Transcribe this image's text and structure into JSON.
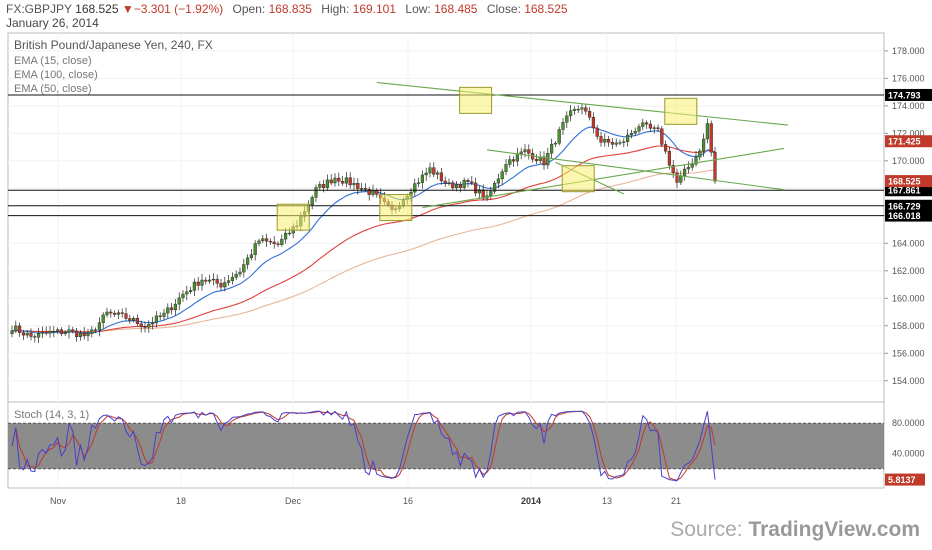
{
  "header": {
    "symbol": "FX:GBPJPY",
    "last": "168.525",
    "change": "▼−3.301 (−1.92%)",
    "open_label": "Open:",
    "open": "168.835",
    "high_label": "High:",
    "high": "169.101",
    "low_label": "Low:",
    "low": "168.485",
    "close_label": "Close:",
    "close": "168.525",
    "date": "January 26, 2014"
  },
  "legend": {
    "title": "British Pound/Japanese Yen, 240, FX",
    "ema15": "EMA (15, close)",
    "ema100": "EMA (100, close)",
    "ema50": "EMA (50, close)"
  },
  "stoch_label": "Stoch (14, 3, 1)",
  "source": {
    "prefix": "Source: ",
    "brand": "TradingView.com"
  },
  "colors": {
    "up": "#4a8f2e",
    "down": "#c0392b",
    "ema15": "#2f6fd6",
    "ema100": "#e8b598",
    "ema50": "#e0413a",
    "trend": "#6aa84f",
    "box_fill": "#f7ef70",
    "box_stroke": "#9a9a28",
    "stoch_k": "#4a3fc9",
    "stoch_d": "#c0392b",
    "stoch_band": "#8c8c8c"
  },
  "chart_data": [
    {
      "type": "line",
      "title": "British Pound/Japanese Yen, 240, FX",
      "x_ticks": [
        "Nov",
        "18",
        "Dec",
        "16",
        "2014",
        "13",
        "21"
      ],
      "y_ticks": [
        "154.000",
        "156.000",
        "158.000",
        "160.000",
        "162.000",
        "164.000",
        "166.000",
        "168.000",
        "170.000",
        "172.000",
        "174.000",
        "176.000",
        "178.000"
      ],
      "ylim": [
        152.6,
        179.3
      ],
      "horizontal_levels": [
        {
          "value": 174.793,
          "label": "174.793"
        },
        {
          "value": 167.861,
          "label": "167.861"
        },
        {
          "value": 166.729,
          "label": "166.729"
        },
        {
          "value": 166.018,
          "label": "166.018"
        }
      ],
      "price_tags": [
        {
          "value": 171.425,
          "label": "171.425",
          "color": "#c0392b"
        },
        {
          "value": 168.525,
          "label": "168.525",
          "color": "#c0392b"
        }
      ],
      "series": [
        {
          "name": "GBPJPY close",
          "x": [
            0,
            5,
            10,
            15,
            20,
            25,
            30,
            35,
            40,
            45,
            50,
            55,
            60,
            65,
            70,
            75,
            80,
            85,
            90,
            95,
            100,
            105,
            110,
            115,
            120,
            125,
            130,
            135,
            140,
            142,
            145,
            147,
            150,
            155,
            160,
            165,
            170,
            175,
            180,
            182,
            183,
            185
          ],
          "values": [
            157.9,
            157.2,
            157.5,
            157.6,
            157.2,
            158.9,
            158.6,
            158.0,
            158.8,
            160.3,
            161.4,
            161.0,
            162.0,
            164.2,
            163.9,
            165.4,
            167.9,
            168.8,
            168.3,
            167.6,
            166.3,
            168.0,
            169.4,
            168.2,
            168.4,
            167.2,
            169.9,
            170.7,
            169.9,
            171.0,
            172.6,
            173.4,
            174.0,
            171.4,
            171.2,
            172.6,
            172.1,
            168.4,
            170.3,
            171.5,
            172.7,
            168.5
          ]
        },
        {
          "name": "EMA (15, close)"
        },
        {
          "name": "EMA (100, close)"
        },
        {
          "name": "EMA (50, close)"
        }
      ],
      "trendlines": 4,
      "highlight_boxes": 5
    },
    {
      "type": "line",
      "title": "Stoch (14, 3, 1)",
      "y_ticks": [
        "40.0000",
        "80.0000"
      ],
      "ylim": [
        0,
        100
      ],
      "band": [
        20,
        80
      ],
      "last_value": "5.8137"
    }
  ]
}
